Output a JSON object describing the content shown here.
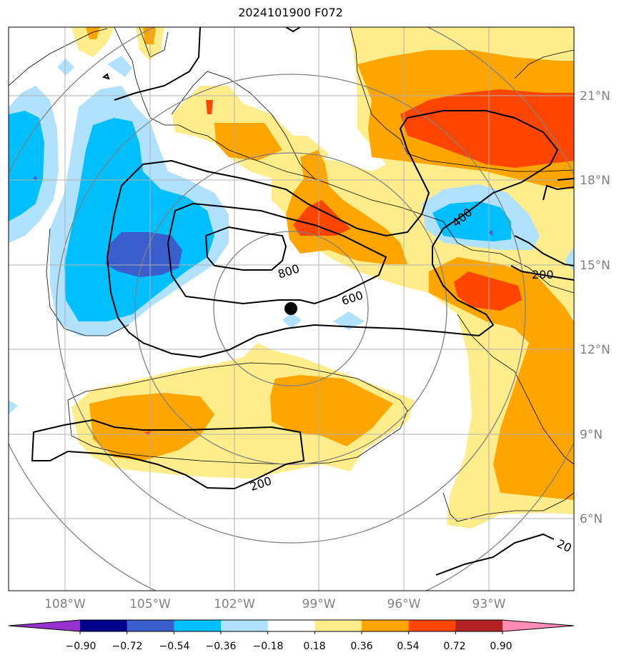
{
  "title": "2024101900 F072",
  "lon_labels": [
    "108°W",
    "105°W",
    "102°W",
    "99°W",
    "96°W",
    "93°W"
  ],
  "lat_labels": [
    "21°N",
    "18°N",
    "15°N",
    "12°N",
    "9°N",
    "6°N"
  ],
  "colorbar": {
    "tick_labels": [
      "−0.90",
      "−0.72",
      "−0.54",
      "−0.36",
      "−0.18",
      "0.18",
      "0.36",
      "0.54",
      "0.72",
      "0.90"
    ],
    "colors": [
      "#9932cc",
      "#00008b",
      "#3a5fcd",
      "#00bfff",
      "#b0e2ff",
      "#ffffff",
      "#ffec8b",
      "#ffa500",
      "#ff4500",
      "#b22222",
      "#ff8cb4"
    ]
  },
  "contours": [
    {
      "label": "800"
    },
    {
      "label": "600"
    },
    {
      "label": "400"
    },
    {
      "label": "200"
    },
    {
      "label": "200"
    },
    {
      "label": "20"
    }
  ],
  "center_marker": {
    "lon": -100,
    "lat": 13.4
  }
}
